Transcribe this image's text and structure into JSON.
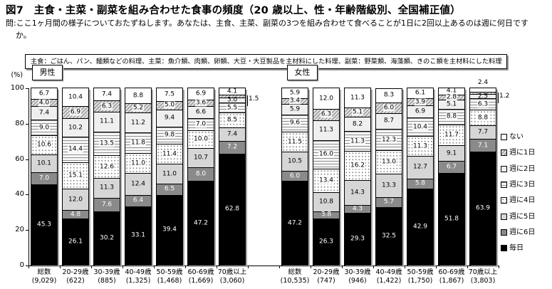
{
  "title": "図7　主食・主菜・副菜を組み合わせた食事の頻度（20 歳以上、性・年齢階級別、全国補正値）",
  "question": "問:ここ1ヶ月間の様子についておたずねします。あなたは、主食、主菜、副菜の3つを組み合わせて食べることが1日に2回以上あるのは週に何日ですか。",
  "note": "主食：ごはん、パン、麺類などの料理、主菜：魚介類、肉類、卵類、大豆・大豆製品を主材料にした料理、副菜：野菜類、海藻類、きのこ類を主材料にした料理",
  "chart_data": {
    "type": "bar",
    "stacked": true,
    "value_unit": "(%)",
    "ylim": [
      0,
      100
    ],
    "yticks": [
      0,
      20,
      40,
      60,
      80,
      100
    ],
    "grid": false,
    "legend_position": "right",
    "legend_top_to_bottom": [
      "ない",
      "週に1日",
      "週に2日",
      "週に3日",
      "週に4日",
      "週に5日",
      "週に6日",
      "毎日"
    ],
    "series_bottom_to_top": [
      {
        "name": "毎日",
        "pattern": "black",
        "color": "#000000"
      },
      {
        "name": "週に6日",
        "pattern": "dgray",
        "color": "#8a8a8a"
      },
      {
        "name": "週に5日",
        "pattern": "lgray",
        "color": "#d6d6d6"
      },
      {
        "name": "週に4日",
        "pattern": "dots",
        "color": "#ffffff"
      },
      {
        "name": "週に3日",
        "pattern": "hlines",
        "color": "#f6f6f6"
      },
      {
        "name": "週に2日",
        "pattern": "white2",
        "color": "#efefef"
      },
      {
        "name": "週に1日",
        "pattern": "hatch",
        "color": "#dedede"
      },
      {
        "name": "ない",
        "pattern": "white",
        "color": "#ffffff"
      }
    ],
    "groups": [
      {
        "name": "男性",
        "bars": [
          {
            "category": "総数",
            "count": "(9,029)",
            "values": [
              45.3,
              7.0,
              10.1,
              10.6,
              9.0,
              7.4,
              4.0,
              6.7
            ]
          },
          {
            "category": "20-29歳",
            "count": "(622)",
            "values": [
              26.1,
              4.8,
              12.0,
              15.1,
              14.4,
              10.2,
              6.9,
              10.4
            ]
          },
          {
            "category": "30-39歳",
            "count": "(885)",
            "values": [
              30.2,
              7.6,
              11.3,
              12.6,
              13.5,
              11.1,
              6.3,
              7.4
            ]
          },
          {
            "category": "40-49歳",
            "count": "(1,325)",
            "values": [
              33.1,
              6.4,
              12.4,
              11.0,
              11.8,
              11.2,
              5.2,
              8.8
            ]
          },
          {
            "category": "50-59歳",
            "count": "(1,468)",
            "values": [
              39.4,
              6.5,
              11.0,
              11.4,
              9.8,
              9.4,
              5.0,
              7.5
            ]
          },
          {
            "category": "60-69歳",
            "count": "(1,669)",
            "values": [
              47.2,
              8.0,
              10.7,
              10.0,
              7.0,
              6.6,
              3.6,
              6.9
            ]
          },
          {
            "category": "70歳以上",
            "count": "(3,060)",
            "values": [
              62.8,
              7.2,
              7.4,
              8.5,
              5.5,
              3.0,
              1.5,
              4.1
            ],
            "label_outside": {
              "6": "right"
            }
          }
        ]
      },
      {
        "name": "女性",
        "bars": [
          {
            "category": "総数",
            "count": "(10,535)",
            "values": [
              47.2,
              6.0,
              10.5,
              11.5,
              9.6,
              5.9,
              3.4,
              5.9
            ]
          },
          {
            "category": "20-29歳",
            "count": "(747)",
            "values": [
              26.3,
              3.8,
              10.8,
              13.4,
              16.0,
              11.3,
              6.3,
              12.0
            ]
          },
          {
            "category": "30-39歳",
            "count": "(946)",
            "values": [
              29.3,
              4.3,
              14.3,
              16.2,
              11.3,
              8.2,
              5.1,
              11.3
            ]
          },
          {
            "category": "40-49歳",
            "count": "(1,422)",
            "values": [
              32.5,
              5.7,
              13.3,
              13.0,
              12.3,
              8.7,
              6.0,
              8.3
            ]
          },
          {
            "category": "50-59歳",
            "count": "(1,750)",
            "values": [
              42.9,
              5.8,
              12.7,
              11.3,
              10.4,
              6.9,
              3.9,
              6.1
            ]
          },
          {
            "category": "60-69歳",
            "count": "(1,867)",
            "values": [
              51.8,
              6.7,
              9.1,
              11.7,
              8.8,
              5.1,
              2.8,
              4.1
            ]
          },
          {
            "category": "70歳以上",
            "count": "(3,803)",
            "values": [
              63.9,
              7.1,
              7.7,
              8.8,
              6.3,
              2.5,
              1.2,
              2.4
            ],
            "label_outside": {
              "6": "right",
              "7": "above"
            }
          }
        ]
      }
    ]
  }
}
